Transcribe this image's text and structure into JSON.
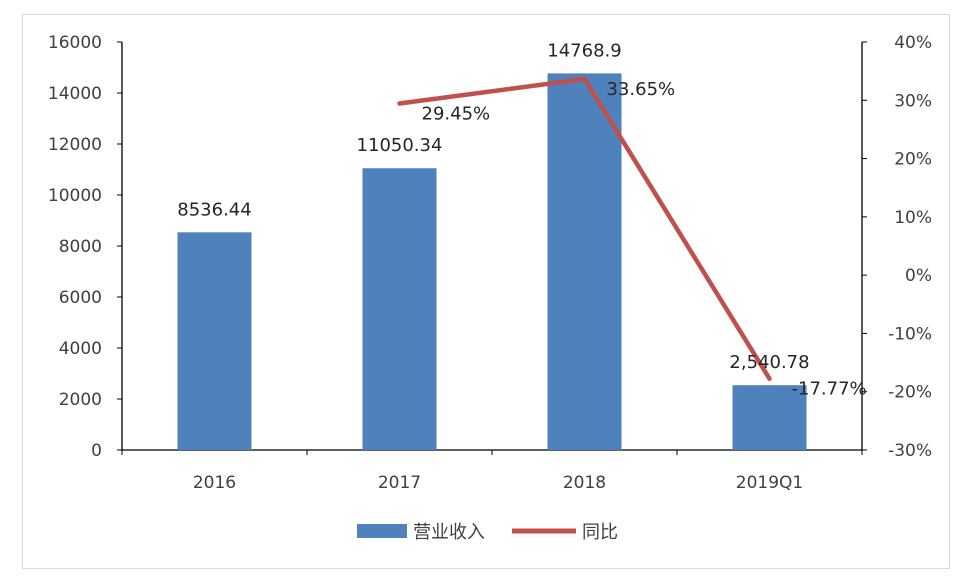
{
  "chart_data": {
    "type": "bar",
    "categories": [
      "2016",
      "2017",
      "2018",
      "2019Q1"
    ],
    "series": [
      {
        "name": "营业收入",
        "type": "bar",
        "axis": "left",
        "color": "#4f81bd",
        "values": [
          8536.44,
          11050.34,
          14768.9,
          2540.78
        ],
        "labels": [
          "8536.44",
          "11050.34",
          "14768.9",
          "2,540.78"
        ]
      },
      {
        "name": "同比",
        "type": "line",
        "axis": "right",
        "color": "#c0504d",
        "values": [
          null,
          29.45,
          33.65,
          -17.77
        ],
        "labels": [
          "",
          "29.45%",
          "33.65%",
          "-17.77%"
        ]
      }
    ],
    "y_left": {
      "min": 0,
      "max": 16000,
      "step": 2000,
      "ticks": [
        "0",
        "2000",
        "4000",
        "6000",
        "8000",
        "10000",
        "12000",
        "14000",
        "16000"
      ]
    },
    "y_right": {
      "min": -30,
      "max": 40,
      "step": 10,
      "ticks": [
        "-30%",
        "-20%",
        "-10%",
        "0%",
        "10%",
        "20%",
        "30%",
        "40%"
      ]
    },
    "grid": false,
    "legend_position": "bottom"
  }
}
